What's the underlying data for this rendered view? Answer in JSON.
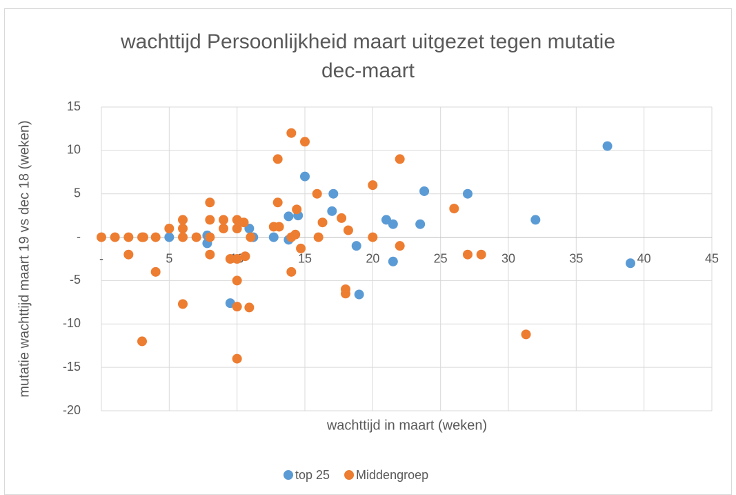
{
  "chart_data": {
    "type": "scatter",
    "title": "wachttijd Persoonlijkheid maart uitgezet tegen mutatie dec-maart",
    "xlabel": "wachttijd in maart (weken)",
    "ylabel": "mutatie wachttijd maart 19 vs dec 18 (weken)",
    "xlim": [
      0,
      45
    ],
    "xticks": [
      {
        "value": 0,
        "label": "-"
      },
      5,
      10,
      15,
      20,
      25,
      30,
      35,
      40,
      45
    ],
    "ylim": [
      -20,
      15
    ],
    "yticks": [
      15,
      10,
      5,
      {
        "value": 0,
        "label": "-"
      },
      -5,
      -10,
      -15,
      -20
    ],
    "grid": true,
    "legend": "bottom",
    "series": [
      {
        "name": "top 25",
        "color": "#5b9bd5",
        "x": [
          5,
          7.8,
          7.8,
          9.5,
          10.9,
          11.2,
          12.7,
          13.8,
          13.8,
          14.5,
          15,
          17,
          17.1,
          18.8,
          19,
          21,
          21.5,
          21.5,
          23.5,
          23.8,
          27,
          32,
          37.3,
          39
        ],
        "values": [
          0,
          0.2,
          -0.7,
          -7.6,
          1,
          0,
          0,
          2.4,
          -0.3,
          2.5,
          7,
          3,
          5,
          -1,
          -6.6,
          2,
          1.5,
          -2.8,
          1.5,
          5.3,
          5,
          2,
          10.5,
          -3
        ]
      },
      {
        "name": "Middengroep",
        "color": "#ed7d31",
        "x": [
          0,
          1,
          2,
          2,
          3,
          3,
          3.1,
          4,
          4,
          5,
          6,
          6,
          6,
          6,
          7,
          8,
          8,
          8,
          8,
          9,
          9,
          9.5,
          10,
          10,
          10,
          10,
          10,
          10,
          10.5,
          10.6,
          10.9,
          11,
          12.7,
          13,
          13,
          13.1,
          14,
          14,
          14,
          14.3,
          14.4,
          14.7,
          15,
          15.9,
          16,
          16.3,
          17.7,
          18,
          18,
          18.2,
          20,
          20,
          22,
          22,
          26,
          27,
          28,
          31.3
        ],
        "values": [
          0,
          0,
          0,
          -2,
          0,
          -12,
          0,
          0,
          -4,
          1,
          2,
          1,
          0,
          -7.7,
          0,
          4,
          2,
          0,
          -2,
          2,
          1,
          -2.5,
          2,
          1,
          -2.5,
          -5,
          -8,
          -14,
          1.7,
          -2.2,
          -8.1,
          0,
          1.2,
          9,
          4,
          1.2,
          12,
          -4,
          0,
          0.3,
          3.2,
          -1.3,
          11,
          5,
          0,
          1.7,
          2.2,
          -6,
          -6.5,
          0.8,
          6,
          0,
          9,
          -1,
          3.3,
          -2,
          -2,
          -11.2
        ]
      }
    ]
  }
}
